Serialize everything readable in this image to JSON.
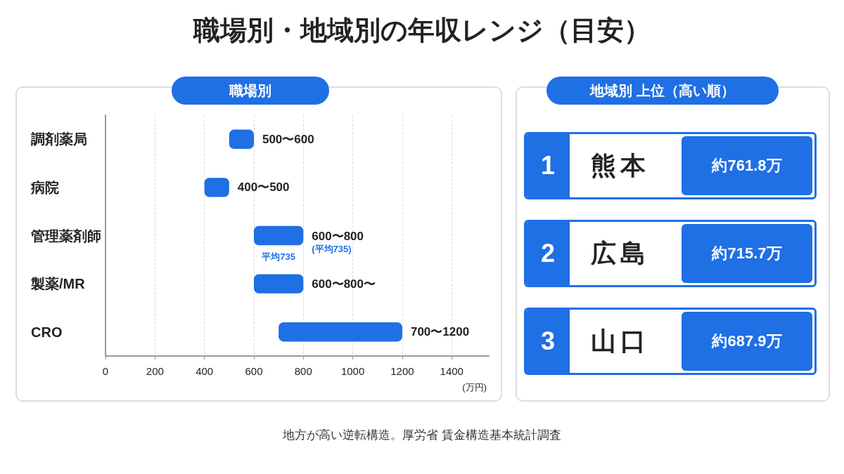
{
  "chart_data": [
    {
      "type": "bar",
      "orientation": "horizontal",
      "title": "職場別・地域別の年収レンジ（目安）",
      "subtitle": "職場別",
      "xlabel": "(万円)",
      "categories": [
        "調剤薬局",
        "病院",
        "管理薬剤師",
        "製薬/MR",
        "CRO"
      ],
      "base": [
        500,
        400,
        600,
        600,
        700
      ],
      "values": [
        100,
        100,
        200,
        200,
        500
      ],
      "color": "#1f6fe5",
      "xlim": [
        0,
        1550
      ],
      "xticks": [
        0,
        200,
        400,
        600,
        800,
        1000,
        1200,
        1400
      ],
      "grid": "x",
      "annotations": [
        {
          "text": "500〜600",
          "x": 600,
          "y": "調剤薬局"
        },
        {
          "text": "400〜500",
          "x": 500,
          "y": "病院"
        },
        {
          "text": "600〜800\n(平均735)",
          "x": 800,
          "y": "管理薬剤師"
        },
        {
          "text": "600〜800〜",
          "x": 800,
          "y": "製薬/MR"
        },
        {
          "text": "700〜1200",
          "x": 1200,
          "y": "CRO"
        },
        "平均735",
        "地方が高い逆転構造。厚労省 賃金構造基本統計調査"
      ]
    },
    {
      "type": "other",
      "title": "地域別 上位（高い順）",
      "categories": [
        "熊本",
        "広島",
        "山口"
      ],
      "value_labels": [
        "約761.8万",
        "約715.7万",
        "約687.9万"
      ],
      "annotations": [
        "1",
        "2",
        "3"
      ]
    }
  ]
}
